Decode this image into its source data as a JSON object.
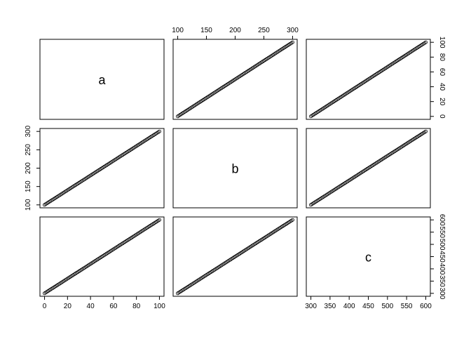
{
  "chart_data": {
    "type": "scatter",
    "matrix": "pairs",
    "variables": [
      {
        "name": "a",
        "range": [
          0,
          100
        ],
        "ticks": [
          0,
          20,
          40,
          60,
          80,
          100
        ]
      },
      {
        "name": "b",
        "range": [
          100,
          300
        ],
        "ticks": [
          100,
          150,
          200,
          250,
          300
        ]
      },
      {
        "name": "c",
        "range": [
          300,
          600
        ],
        "ticks": [
          300,
          350,
          400,
          450,
          500,
          550,
          600
        ]
      }
    ],
    "relationship": {
      "b": "a * 2 + 100",
      "c": "a * 3 + 300"
    },
    "points": {
      "a": [
        0,
        1,
        2,
        3,
        4,
        5,
        6,
        7,
        8,
        9,
        10,
        11,
        12,
        13,
        14,
        15,
        16,
        17,
        18,
        19,
        20,
        21,
        22,
        23,
        24,
        25,
        26,
        27,
        28,
        29,
        30,
        31,
        32,
        33,
        34,
        35,
        36,
        37,
        38,
        39,
        40,
        41,
        42,
        43,
        44,
        45,
        46,
        47,
        48,
        49,
        50,
        51,
        52,
        53,
        54,
        55,
        56,
        57,
        58,
        59,
        60,
        61,
        62,
        63,
        64,
        65,
        66,
        67,
        68,
        69,
        70,
        71,
        72,
        73,
        74,
        75,
        76,
        77,
        78,
        79,
        80,
        81,
        82,
        83,
        84,
        85,
        86,
        87,
        88,
        89,
        90,
        91,
        92,
        93,
        94,
        95,
        96,
        97,
        98,
        99,
        100
      ]
    },
    "grid": false,
    "legend": "none"
  }
}
